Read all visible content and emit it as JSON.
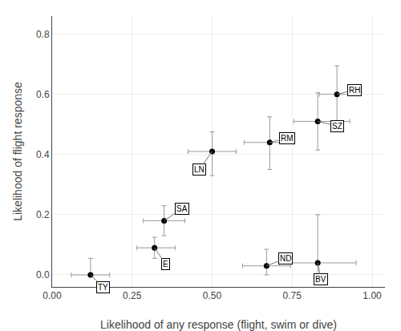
{
  "chart_data": {
    "type": "scatter",
    "xlabel": "Likelihood of any response (flight, swim or dive)",
    "ylabel": "Likelihood of flight response",
    "labels": [
      "TY",
      "E",
      "SA",
      "LN",
      "RM",
      "ND",
      "BV",
      "SZ",
      "RH"
    ],
    "x": [
      0.12,
      0.32,
      0.35,
      0.5,
      0.68,
      0.67,
      0.83,
      0.83,
      0.89
    ],
    "y": [
      0.0,
      0.09,
      0.18,
      0.41,
      0.44,
      0.03,
      0.04,
      0.51,
      0.6
    ],
    "xerr_minus": [
      0.06,
      0.055,
      0.065,
      0.075,
      0.08,
      0.075,
      0.12,
      0.075,
      0.055
    ],
    "xerr_plus": [
      0.06,
      0.065,
      0.065,
      0.075,
      0.075,
      0.075,
      0.12,
      0.1,
      0.065
    ],
    "yerr_minus": [
      0.0,
      0.035,
      0.05,
      0.08,
      0.09,
      0.03,
      0.04,
      0.095,
      0.115
    ],
    "yerr_plus": [
      0.055,
      0.035,
      0.05,
      0.065,
      0.085,
      0.055,
      0.16,
      0.095,
      0.095
    ],
    "xlim": [
      0.0,
      1.04
    ],
    "ylim": [
      -0.04,
      0.86
    ],
    "xticks": [
      {
        "value": 0.0,
        "label": "0.00"
      },
      0.25,
      {
        "value": 0.5,
        "label": "0.50"
      },
      0.75,
      {
        "value": 1.0,
        "label": "1.00"
      }
    ],
    "yticks": [
      {
        "value": 0.0,
        "label": "0.0"
      },
      0.2,
      0.4,
      0.6,
      0.8
    ],
    "color": "black",
    "grid": true
  }
}
